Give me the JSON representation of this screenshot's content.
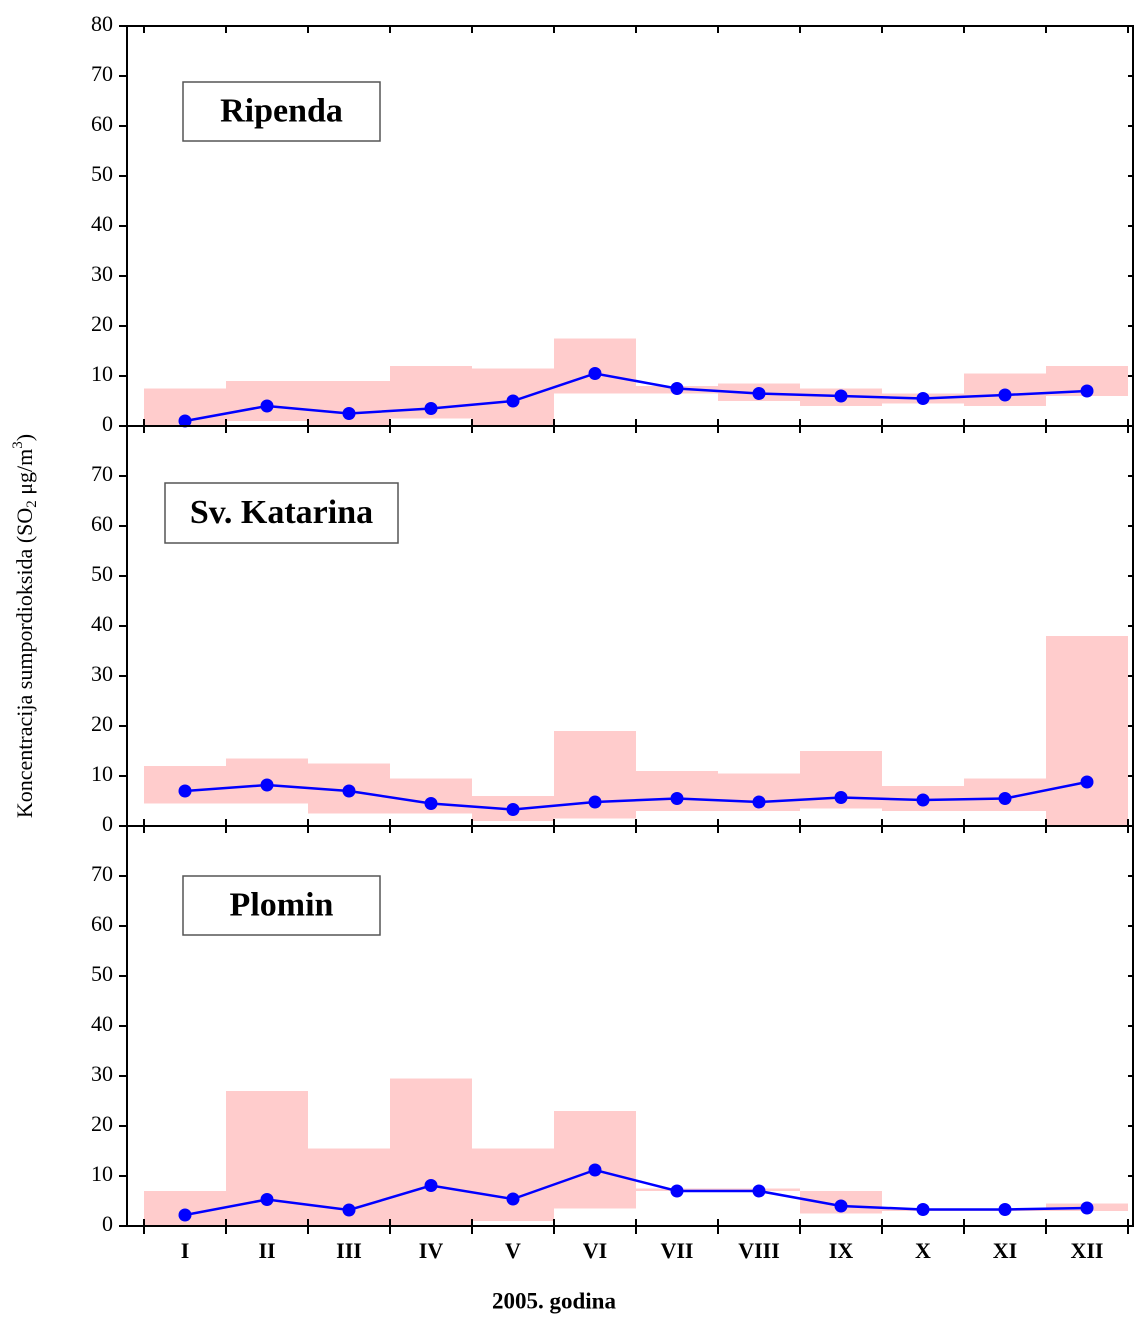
{
  "axis_titles": {
    "y": [
      "Koncentracija sumpordioksida (SO",
      "2",
      " μg/m",
      "3",
      ")"
    ],
    "x": "2005. godina"
  },
  "chart_data": [
    {
      "type": "line",
      "title": "Ripenda",
      "line_color": "#0000ff",
      "range_color": "#ffcccc",
      "values": [
        1,
        4,
        2.5,
        3.5,
        5,
        10.5,
        7.5,
        6.5,
        6,
        5.5,
        6.2,
        7
      ],
      "min": [
        0,
        1,
        0,
        1.5,
        0,
        6.5,
        6.5,
        5,
        4,
        4.5,
        4,
        6
      ],
      "max": [
        7.5,
        9,
        9,
        12,
        11.5,
        17.5,
        8,
        8.5,
        7.5,
        6.5,
        10.5,
        12
      ],
      "ylim": [
        0,
        80
      ],
      "yticks": [
        0,
        10,
        20,
        30,
        40,
        50,
        60,
        70,
        80
      ]
    },
    {
      "type": "line",
      "title": "Sv. Katarina",
      "line_color": "#0000ff",
      "range_color": "#ffcccc",
      "values": [
        7,
        8.2,
        7,
        4.5,
        3.3,
        4.8,
        5.5,
        4.8,
        5.7,
        5.2,
        5.5,
        8.8
      ],
      "min": [
        4.5,
        4.5,
        2.5,
        2.5,
        1,
        1.5,
        3,
        3,
        3.5,
        3,
        3,
        0
      ],
      "max": [
        12,
        13.5,
        12.5,
        9.5,
        6,
        19,
        11,
        10.5,
        15,
        8,
        9.5,
        38
      ],
      "ylim": [
        0,
        80
      ],
      "yticks": [
        0,
        10,
        20,
        30,
        40,
        50,
        60,
        70
      ]
    },
    {
      "type": "line",
      "title": "Plomin",
      "line_color": "#0000ff",
      "range_color": "#ffcccc",
      "categories": [
        "I",
        "II",
        "III",
        "IV",
        "V",
        "VI",
        "VII",
        "VIII",
        "IX",
        "X",
        "XI",
        "XII"
      ],
      "values": [
        2.2,
        5.3,
        3.2,
        8.1,
        5.4,
        11.2,
        7,
        7,
        4,
        3.3,
        3.3,
        3.6
      ],
      "min": [
        0,
        0,
        0,
        0,
        1,
        3.5,
        7,
        7,
        2.5,
        3,
        3,
        3
      ],
      "max": [
        7,
        27,
        15.5,
        29.5,
        15.5,
        23,
        7.5,
        7.5,
        7,
        3.5,
        3.5,
        4.5
      ],
      "ylim": [
        0,
        80
      ],
      "yticks": [
        0,
        10,
        20,
        30,
        40,
        50,
        60,
        70
      ]
    }
  ]
}
